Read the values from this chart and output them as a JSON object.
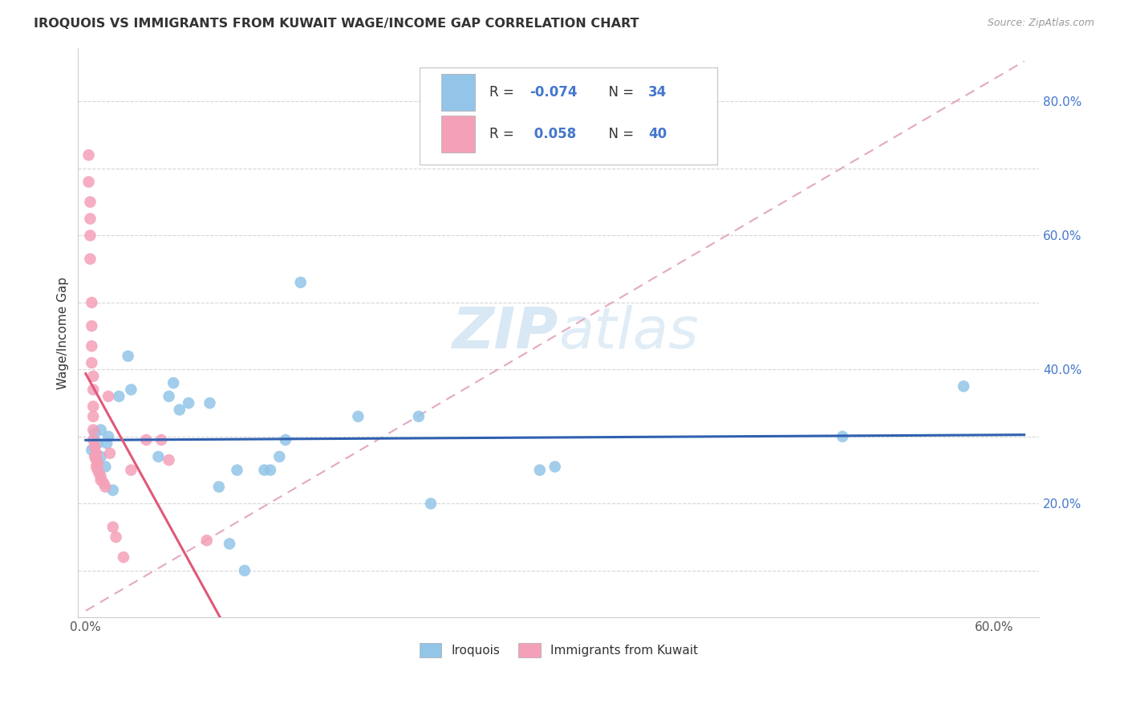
{
  "title": "IROQUOIS VS IMMIGRANTS FROM KUWAIT WAGE/INCOME GAP CORRELATION CHART",
  "source": "Source: ZipAtlas.com",
  "ylabel": "Wage/Income Gap",
  "xlim": [
    -0.005,
    0.63
  ],
  "ylim": [
    0.03,
    0.88
  ],
  "x_tick_positions": [
    0.0,
    0.1,
    0.2,
    0.3,
    0.4,
    0.5,
    0.6
  ],
  "x_tick_labels": [
    "0.0%",
    "",
    "",
    "",
    "",
    "",
    "60.0%"
  ],
  "y_tick_positions": [
    0.1,
    0.2,
    0.3,
    0.4,
    0.5,
    0.6,
    0.7,
    0.8
  ],
  "y_tick_labels": [
    "",
    "20.0%",
    "",
    "40.0%",
    "",
    "60.0%",
    "",
    "80.0%"
  ],
  "legend_iroquois": "Iroquois",
  "legend_kuwait": "Immigrants from Kuwait",
  "r_iroquois": "-0.074",
  "n_iroquois": "34",
  "r_kuwait": "0.058",
  "n_kuwait": "40",
  "blue_scatter_color": "#92C5E8",
  "pink_scatter_color": "#F4A0B8",
  "blue_line_color": "#3060B0",
  "pink_line_color": "#E05878",
  "dash_line_color": "#E0A0B8",
  "watermark_color": "#C8DFF0",
  "iroquois_x": [
    0.004,
    0.006,
    0.008,
    0.01,
    0.01,
    0.013,
    0.014,
    0.015,
    0.018,
    0.022,
    0.028,
    0.03,
    0.048,
    0.055,
    0.058,
    0.062,
    0.068,
    0.082,
    0.088,
    0.095,
    0.1,
    0.105,
    0.118,
    0.122,
    0.128,
    0.132,
    0.142,
    0.18,
    0.22,
    0.228,
    0.3,
    0.31,
    0.5,
    0.58
  ],
  "iroquois_y": [
    0.28,
    0.305,
    0.29,
    0.31,
    0.27,
    0.255,
    0.29,
    0.3,
    0.22,
    0.36,
    0.42,
    0.37,
    0.27,
    0.36,
    0.38,
    0.34,
    0.35,
    0.35,
    0.225,
    0.14,
    0.25,
    0.1,
    0.25,
    0.25,
    0.27,
    0.295,
    0.53,
    0.33,
    0.33,
    0.2,
    0.25,
    0.255,
    0.3,
    0.375
  ],
  "kuwait_x": [
    0.002,
    0.002,
    0.003,
    0.003,
    0.003,
    0.003,
    0.004,
    0.004,
    0.004,
    0.004,
    0.005,
    0.005,
    0.005,
    0.005,
    0.005,
    0.005,
    0.006,
    0.006,
    0.006,
    0.007,
    0.007,
    0.007,
    0.007,
    0.008,
    0.008,
    0.009,
    0.01,
    0.01,
    0.012,
    0.013,
    0.015,
    0.016,
    0.018,
    0.02,
    0.025,
    0.03,
    0.04,
    0.05,
    0.055,
    0.08
  ],
  "kuwait_y": [
    0.72,
    0.68,
    0.65,
    0.625,
    0.6,
    0.565,
    0.5,
    0.465,
    0.435,
    0.41,
    0.39,
    0.37,
    0.345,
    0.33,
    0.31,
    0.295,
    0.285,
    0.285,
    0.27,
    0.275,
    0.27,
    0.265,
    0.255,
    0.26,
    0.25,
    0.245,
    0.24,
    0.235,
    0.23,
    0.225,
    0.36,
    0.275,
    0.165,
    0.15,
    0.12,
    0.25,
    0.295,
    0.295,
    0.265,
    0.145
  ]
}
